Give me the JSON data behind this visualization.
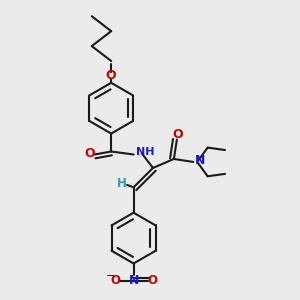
{
  "bg_color": "#ebebeb",
  "bond_color": "#1a1a1a",
  "oxygen_color": "#cc0000",
  "nitrogen_color": "#1a1acc",
  "hydrogen_color": "#3a9a9a",
  "line_width": 1.5,
  "fig_size": [
    3.0,
    3.0
  ],
  "dpi": 100,
  "ring_r": 0.085,
  "xlim": [
    0.0,
    1.0
  ],
  "ylim": [
    0.0,
    1.0
  ]
}
